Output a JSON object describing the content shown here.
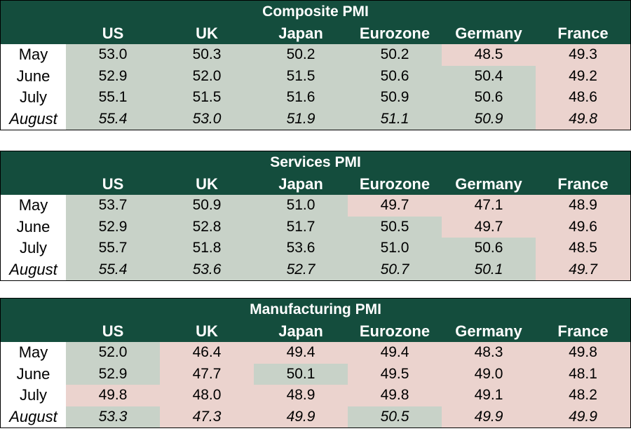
{
  "colors": {
    "header_bg": "#144d3d",
    "positive": "#c8d2c8",
    "negative": "#ebd3ce"
  },
  "chart_data": [
    {
      "type": "table",
      "title": "Composite PMI",
      "columns": [
        "US",
        "UK",
        "Japan",
        "Eurozone",
        "Germany",
        "France"
      ],
      "rows": [
        {
          "label": "May",
          "values": [
            "53.0",
            "50.3",
            "50.2",
            "50.2",
            "48.5",
            "49.3"
          ]
        },
        {
          "label": "June",
          "values": [
            "52.9",
            "52.0",
            "51.5",
            "50.6",
            "50.4",
            "49.2"
          ]
        },
        {
          "label": "July",
          "values": [
            "55.1",
            "51.5",
            "51.6",
            "50.9",
            "50.6",
            "48.6"
          ]
        },
        {
          "label": "August",
          "values": [
            "55.4",
            "53.0",
            "51.9",
            "51.1",
            "50.9",
            "49.8"
          ]
        }
      ]
    },
    {
      "type": "table",
      "title": "Services PMI",
      "columns": [
        "US",
        "UK",
        "Japan",
        "Eurozone",
        "Germany",
        "France"
      ],
      "rows": [
        {
          "label": "May",
          "values": [
            "53.7",
            "50.9",
            "51.0",
            "49.7",
            "47.1",
            "48.9"
          ]
        },
        {
          "label": "June",
          "values": [
            "52.9",
            "52.8",
            "51.7",
            "50.5",
            "49.7",
            "49.6"
          ]
        },
        {
          "label": "July",
          "values": [
            "55.7",
            "51.8",
            "53.6",
            "51.0",
            "50.6",
            "48.5"
          ]
        },
        {
          "label": "August",
          "values": [
            "55.4",
            "53.6",
            "52.7",
            "50.7",
            "50.1",
            "49.7"
          ]
        }
      ]
    },
    {
      "type": "table",
      "title": "Manufacturing PMI",
      "columns": [
        "US",
        "UK",
        "Japan",
        "Eurozone",
        "Germany",
        "France"
      ],
      "rows": [
        {
          "label": "May",
          "values": [
            "52.0",
            "46.4",
            "49.4",
            "49.4",
            "48.3",
            "49.8"
          ]
        },
        {
          "label": "June",
          "values": [
            "52.9",
            "47.7",
            "50.1",
            "49.5",
            "49.0",
            "48.1"
          ]
        },
        {
          "label": "July",
          "values": [
            "49.8",
            "48.0",
            "48.9",
            "49.8",
            "49.1",
            "48.2"
          ]
        },
        {
          "label": "August",
          "values": [
            "53.3",
            "47.3",
            "49.9",
            "50.5",
            "49.9",
            "49.9"
          ]
        }
      ]
    }
  ]
}
